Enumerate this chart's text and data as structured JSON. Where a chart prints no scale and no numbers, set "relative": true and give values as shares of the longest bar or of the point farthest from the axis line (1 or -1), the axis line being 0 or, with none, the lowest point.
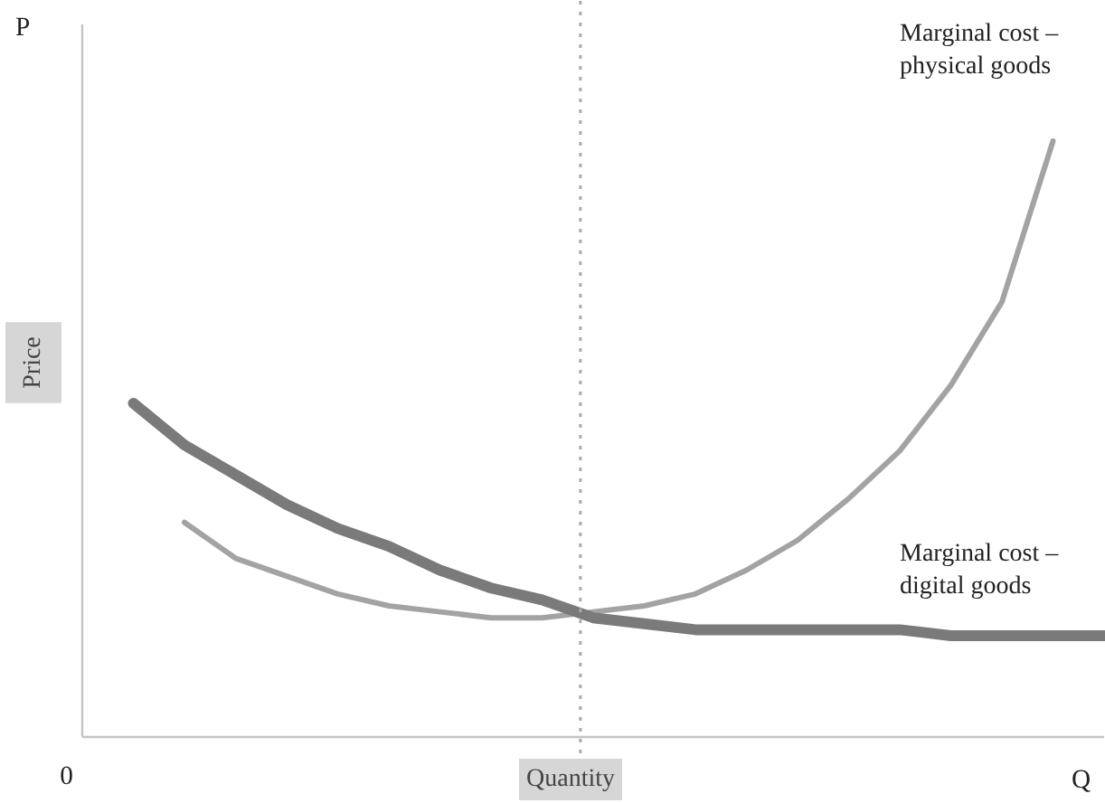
{
  "chart_data": {
    "type": "line",
    "relative": true,
    "xlabel": "Quantity",
    "ylabel": "Price",
    "categories": [
      null,
      null,
      null,
      null,
      null,
      null,
      null,
      null,
      null,
      null,
      null,
      null,
      null,
      null,
      null,
      null,
      null,
      null,
      null,
      null,
      null
    ],
    "series": [
      {
        "name": "Marginal cost – physical goods",
        "color": "#a3a3a3",
        "values": [
          null,
          null,
          0.36,
          0.3,
          0.27,
          0.24,
          0.22,
          0.21,
          0.2,
          0.2,
          0.21,
          0.22,
          0.24,
          0.28,
          0.33,
          0.4,
          0.48,
          0.59,
          0.73,
          1.0,
          null
        ]
      },
      {
        "name": "Marginal cost – digital goods",
        "color": "#7a7a7a",
        "values": [
          null,
          0.56,
          0.49,
          0.44,
          0.39,
          0.35,
          0.32,
          0.28,
          0.25,
          0.23,
          0.2,
          0.19,
          0.18,
          0.18,
          0.18,
          0.18,
          0.18,
          0.17,
          0.17,
          0.17,
          0.17
        ]
      }
    ],
    "annotations": [
      "P",
      "0",
      "Q"
    ],
    "legend": false,
    "marker": "none",
    "line_style": "solid"
  }
}
